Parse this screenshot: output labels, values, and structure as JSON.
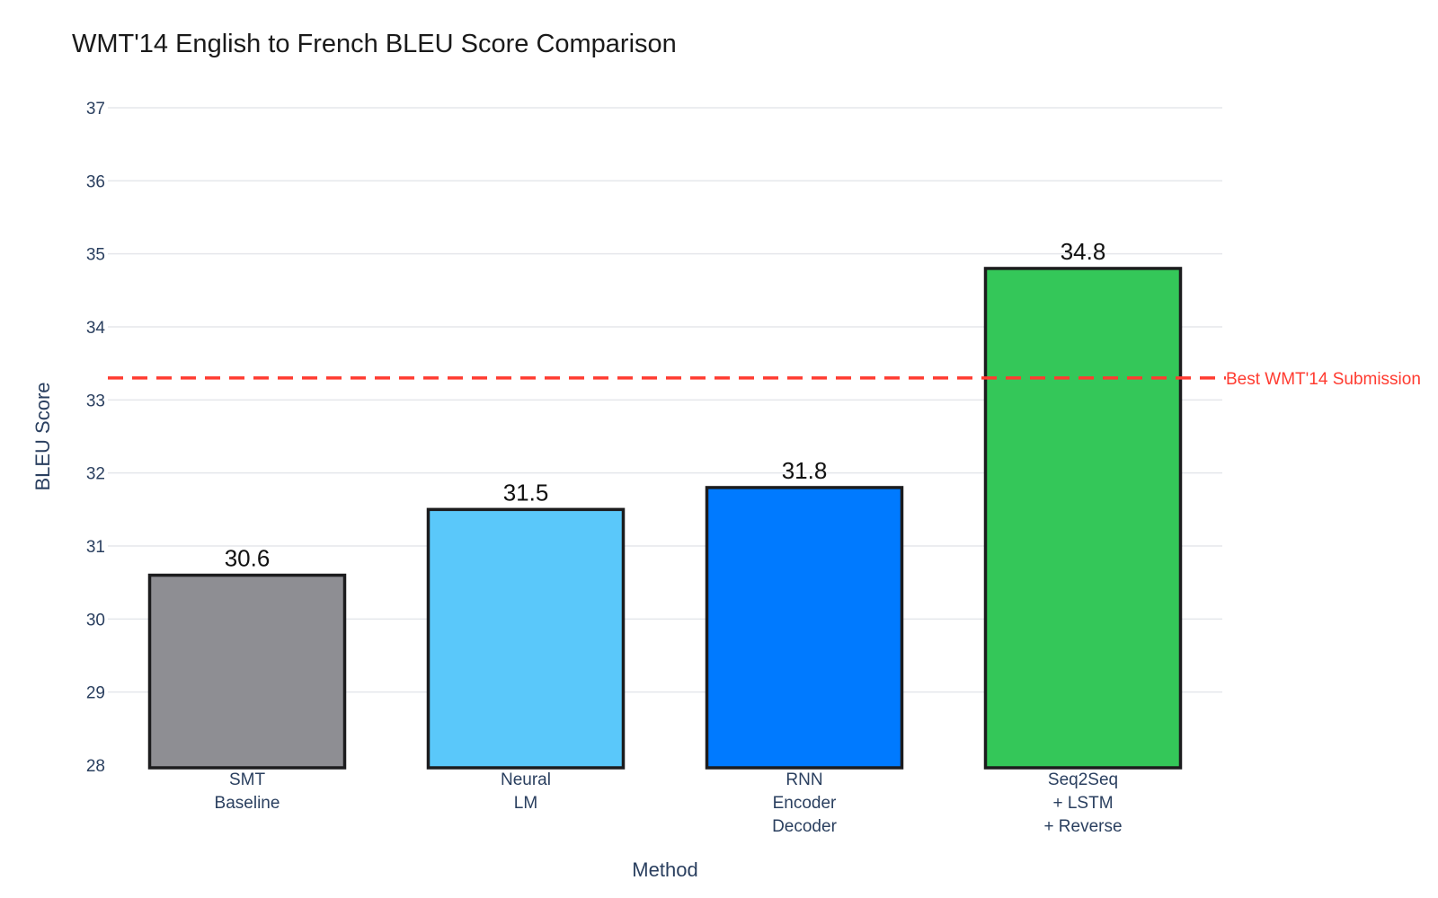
{
  "chart_data": {
    "type": "bar",
    "title": "WMT'14 English to French BLEU Score Comparison",
    "xlabel": "Method",
    "ylabel": "BLEU Score",
    "categories": [
      [
        "SMT",
        "Baseline"
      ],
      [
        "Neural",
        "LM"
      ],
      [
        "RNN",
        "Encoder",
        "Decoder"
      ],
      [
        "Seq2Seq",
        "+ LSTM",
        "+ Reverse"
      ]
    ],
    "values": [
      30.6,
      31.5,
      31.8,
      34.8
    ],
    "value_labels": [
      "30.6",
      "31.5",
      "31.8",
      "34.8"
    ],
    "bar_colors": [
      "#8e8e93",
      "#5ac8fa",
      "#007aff",
      "#34c759"
    ],
    "bar_outline_color": "#1c1c1e",
    "ylim": [
      28,
      37
    ],
    "yticks": [
      28,
      29,
      30,
      31,
      32,
      33,
      34,
      35,
      36,
      37
    ],
    "grid": true,
    "reference_line": {
      "value": 33.3,
      "label": "Best WMT'14 Submission",
      "color": "#ff3b30",
      "style": "dashed"
    }
  }
}
